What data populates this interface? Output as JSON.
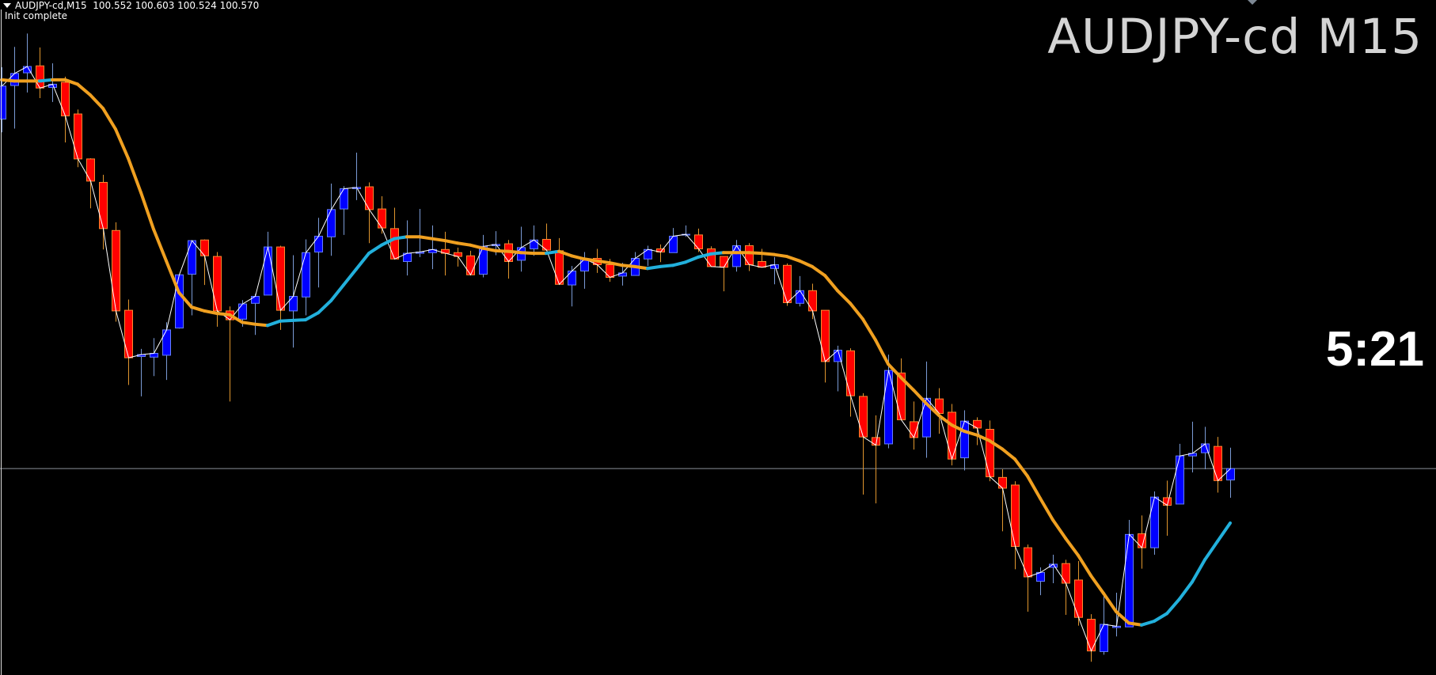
{
  "header": {
    "symbol_timeframe": "AUDJPY-cd,M15",
    "ohlc_text": "100.552 100.603 100.524 100.570",
    "status": "Init complete"
  },
  "overlay": {
    "title": "AUDJPY-cd M15",
    "candle_timer": "5:21"
  },
  "colors": {
    "background": "#000000",
    "bull_body": "#0000ff",
    "bull_border": "#6680ff",
    "bull_wick": "#7b9bd6",
    "bear_body": "#ff0000",
    "bear_border": "#ff8a30",
    "bear_wick": "#e0962e",
    "ma_falling": "#f0a020",
    "ma_rising": "#22b0dc",
    "close_line": "#ffffff",
    "bid_line": "#8a8f99"
  },
  "chart_data": {
    "type": "candlestick",
    "symbol": "AUDJPY-cd",
    "timeframe": "M15",
    "bid": 100.57,
    "ylim": [
      100.244,
      101.31
    ],
    "grid": false,
    "candles_ohlc": [
      [
        101.122,
        101.204,
        101.101,
        101.174
      ],
      [
        101.175,
        101.236,
        101.107,
        101.194
      ],
      [
        101.195,
        101.257,
        101.164,
        101.205
      ],
      [
        101.206,
        101.235,
        101.155,
        101.171
      ],
      [
        101.172,
        101.21,
        101.149,
        101.177
      ],
      [
        101.18,
        101.189,
        101.085,
        101.127
      ],
      [
        101.13,
        101.137,
        101.046,
        101.059
      ],
      [
        101.059,
        101.06,
        100.981,
        101.024
      ],
      [
        101.022,
        101.034,
        100.916,
        100.949
      ],
      [
        100.946,
        100.959,
        100.802,
        100.819
      ],
      [
        100.82,
        100.837,
        100.702,
        100.745
      ],
      [
        100.747,
        100.759,
        100.684,
        100.75
      ],
      [
        100.746,
        100.776,
        100.716,
        100.752
      ],
      [
        100.749,
        100.801,
        100.71,
        100.789
      ],
      [
        100.792,
        100.876,
        100.791,
        100.876
      ],
      [
        100.877,
        100.93,
        100.812,
        100.93
      ],
      [
        100.931,
        100.932,
        100.86,
        100.906
      ],
      [
        100.905,
        100.912,
        100.794,
        100.819
      ],
      [
        100.819,
        100.826,
        100.676,
        100.805
      ],
      [
        100.806,
        100.836,
        100.794,
        100.83
      ],
      [
        100.831,
        100.846,
        100.781,
        100.842
      ],
      [
        100.844,
        100.944,
        100.844,
        100.92
      ],
      [
        100.92,
        100.922,
        100.789,
        100.82
      ],
      [
        100.819,
        100.907,
        100.761,
        100.842
      ],
      [
        100.841,
        100.932,
        100.812,
        100.911
      ],
      [
        100.912,
        100.966,
        100.856,
        100.937
      ],
      [
        100.936,
        101.02,
        100.906,
        100.979
      ],
      [
        100.98,
        101.016,
        100.939,
        101.012
      ],
      [
        101.012,
        101.069,
        100.994,
        101.014
      ],
      [
        101.015,
        101.022,
        100.926,
        100.979
      ],
      [
        100.98,
        101.0,
        100.941,
        100.95
      ],
      [
        100.949,
        100.982,
        100.901,
        100.901
      ],
      [
        100.897,
        100.962,
        100.875,
        100.91
      ],
      [
        100.91,
        100.98,
        100.904,
        100.912
      ],
      [
        100.911,
        100.954,
        100.885,
        100.916
      ],
      [
        100.916,
        100.944,
        100.875,
        100.91
      ],
      [
        100.911,
        100.919,
        100.889,
        100.905
      ],
      [
        100.906,
        100.914,
        100.875,
        100.876
      ],
      [
        100.877,
        100.939,
        100.872,
        100.921
      ],
      [
        100.922,
        100.945,
        100.907,
        100.924
      ],
      [
        100.925,
        100.931,
        100.87,
        100.897
      ],
      [
        100.899,
        100.952,
        100.881,
        100.919
      ],
      [
        100.917,
        100.954,
        100.906,
        100.931
      ],
      [
        100.932,
        100.957,
        100.914,
        100.915
      ],
      [
        100.914,
        100.934,
        100.861,
        100.861
      ],
      [
        100.86,
        100.89,
        100.826,
        100.882
      ],
      [
        100.882,
        100.912,
        100.854,
        100.901
      ],
      [
        100.902,
        100.917,
        100.879,
        100.892
      ],
      [
        100.892,
        100.901,
        100.865,
        100.872
      ],
      [
        100.874,
        100.895,
        100.859,
        100.879
      ],
      [
        100.875,
        100.912,
        100.875,
        100.902
      ],
      [
        100.901,
        100.922,
        100.89,
        100.916
      ],
      [
        100.917,
        100.924,
        100.896,
        100.912
      ],
      [
        100.911,
        100.95,
        100.911,
        100.937
      ],
      [
        100.939,
        100.954,
        100.936,
        100.94
      ],
      [
        100.939,
        100.949,
        100.912,
        100.917
      ],
      [
        100.917,
        100.921,
        100.889,
        100.889
      ],
      [
        100.905,
        100.905,
        100.85,
        100.888
      ],
      [
        100.889,
        100.931,
        100.881,
        100.922
      ],
      [
        100.922,
        100.926,
        100.882,
        100.892
      ],
      [
        100.897,
        100.917,
        100.888,
        100.888
      ],
      [
        100.886,
        100.904,
        100.861,
        100.892
      ],
      [
        100.891,
        100.894,
        100.827,
        100.832
      ],
      [
        100.831,
        100.874,
        100.826,
        100.851
      ],
      [
        100.851,
        100.862,
        100.806,
        100.819
      ],
      [
        100.82,
        100.82,
        100.706,
        100.739
      ],
      [
        100.739,
        100.764,
        100.692,
        100.757
      ],
      [
        100.756,
        100.76,
        100.652,
        100.685
      ],
      [
        100.684,
        100.689,
        100.529,
        100.62
      ],
      [
        100.619,
        100.654,
        100.515,
        100.607
      ],
      [
        100.609,
        100.75,
        100.602,
        100.725
      ],
      [
        100.721,
        100.744,
        100.647,
        100.647
      ],
      [
        100.644,
        100.676,
        100.6,
        100.619
      ],
      [
        100.62,
        100.739,
        100.587,
        100.681
      ],
      [
        100.68,
        100.697,
        100.625,
        100.657
      ],
      [
        100.659,
        100.672,
        100.575,
        100.585
      ],
      [
        100.587,
        100.662,
        100.567,
        100.645
      ],
      [
        100.646,
        100.651,
        100.607,
        100.634
      ],
      [
        100.632,
        100.646,
        100.55,
        100.557
      ],
      [
        100.556,
        100.569,
        100.471,
        100.539
      ],
      [
        100.544,
        100.55,
        100.411,
        100.447
      ],
      [
        100.445,
        100.45,
        100.344,
        100.399
      ],
      [
        100.392,
        100.414,
        100.37,
        100.406
      ],
      [
        100.414,
        100.434,
        100.389,
        100.419
      ],
      [
        100.42,
        100.426,
        100.339,
        100.389
      ],
      [
        100.394,
        100.424,
        100.322,
        100.335
      ],
      [
        100.332,
        100.34,
        100.265,
        100.282
      ],
      [
        100.281,
        100.369,
        100.276,
        100.324
      ],
      [
        100.319,
        100.374,
        100.305,
        100.321
      ],
      [
        100.32,
        100.489,
        100.32,
        100.466
      ],
      [
        100.467,
        100.496,
        100.412,
        100.445
      ],
      [
        100.445,
        100.534,
        100.434,
        100.525
      ],
      [
        100.524,
        100.551,
        100.464,
        100.512
      ],
      [
        100.514,
        100.609,
        100.514,
        100.59
      ],
      [
        100.59,
        100.644,
        100.564,
        100.594
      ],
      [
        100.595,
        100.636,
        100.569,
        100.609
      ],
      [
        100.605,
        100.62,
        100.532,
        100.551
      ],
      [
        100.552,
        100.603,
        100.524,
        100.57
      ]
    ],
    "moving_average": [
      101.184,
      101.182,
      101.182,
      101.182,
      101.184,
      101.184,
      101.177,
      101.16,
      101.139,
      101.106,
      101.06,
      101.006,
      100.948,
      100.898,
      100.848,
      100.825,
      100.819,
      100.815,
      100.813,
      100.801,
      100.798,
      100.796,
      100.803,
      100.804,
      100.805,
      100.816,
      100.835,
      100.86,
      100.885,
      100.91,
      100.923,
      100.933,
      100.936,
      100.936,
      100.933,
      100.93,
      100.926,
      100.923,
      100.918,
      100.914,
      100.913,
      100.911,
      100.91,
      100.91,
      100.913,
      100.906,
      100.901,
      100.898,
      100.895,
      100.891,
      100.889,
      100.886,
      100.889,
      100.891,
      100.896,
      100.904,
      100.909,
      100.911,
      100.911,
      100.911,
      100.91,
      100.908,
      100.905,
      100.898,
      100.889,
      100.875,
      100.851,
      100.831,
      100.806,
      100.773,
      100.735,
      100.714,
      100.694,
      100.673,
      100.654,
      100.639,
      100.629,
      100.623,
      100.614,
      100.601,
      100.585,
      100.558,
      100.523,
      100.489,
      100.46,
      100.433,
      100.401,
      100.373,
      100.344,
      100.326,
      100.323,
      100.329,
      100.341,
      100.364,
      100.391,
      100.426,
      100.455,
      100.484
    ]
  }
}
